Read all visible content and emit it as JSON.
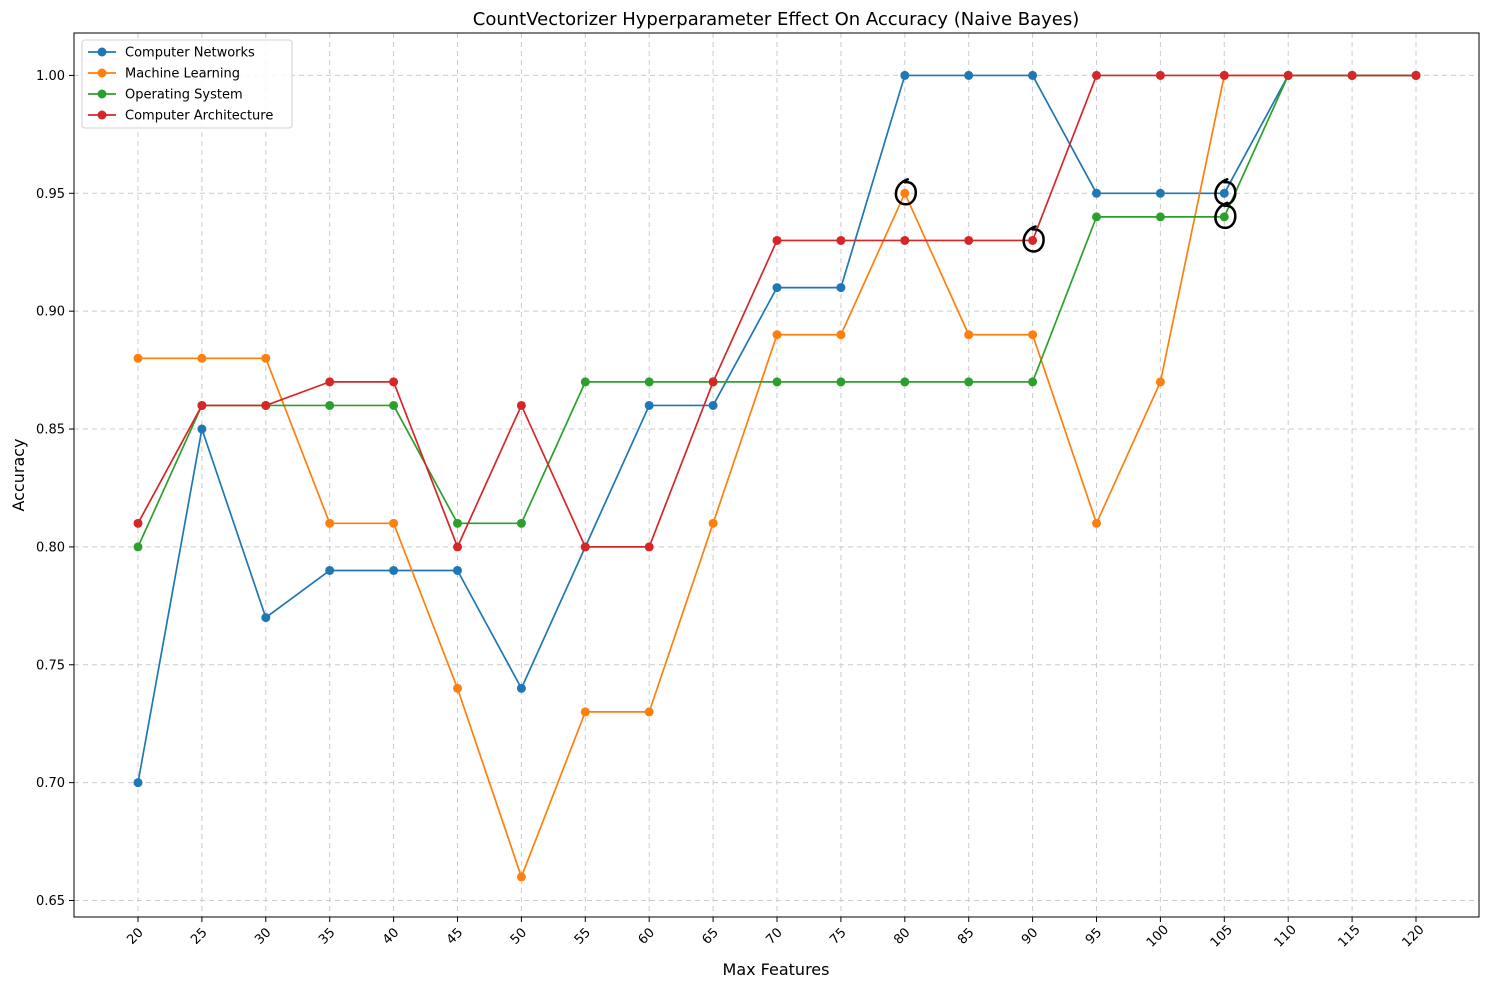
{
  "chart_data": {
    "type": "line",
    "title": "CountVectorizer Hyperparameter Effect On Accuracy (Naive Bayes)",
    "xlabel": "Max Features",
    "ylabel": "Accuracy",
    "x": [
      20,
      25,
      30,
      35,
      40,
      45,
      50,
      55,
      60,
      65,
      70,
      75,
      80,
      85,
      90,
      95,
      100,
      105,
      110,
      115,
      120
    ],
    "x_tick_labels": [
      "20",
      "25",
      "30",
      "35",
      "40",
      "45",
      "50",
      "55",
      "60",
      "65",
      "70",
      "75",
      "80",
      "85",
      "90",
      "95",
      "100",
      "105",
      "110",
      "115",
      "120"
    ],
    "y_tick_labels": [
      "0.65",
      "0.70",
      "0.75",
      "0.80",
      "0.85",
      "0.90",
      "0.95",
      "1.00"
    ],
    "y_ticks": [
      0.65,
      0.7,
      0.75,
      0.8,
      0.85,
      0.9,
      0.95,
      1.0
    ],
    "ylim": [
      0.643,
      1.018
    ],
    "grid": true,
    "legend_position": "top-left",
    "series": [
      {
        "name": "Computer Networks",
        "color": "#1f77b4",
        "values": [
          0.7,
          0.85,
          0.77,
          0.79,
          0.79,
          0.79,
          0.74,
          0.8,
          0.86,
          0.86,
          0.91,
          0.91,
          1.0,
          1.0,
          1.0,
          0.95,
          0.95,
          0.95,
          1.0,
          1.0,
          1.0
        ]
      },
      {
        "name": "Machine Learning",
        "color": "#ff7f0e",
        "values": [
          0.88,
          0.88,
          0.88,
          0.81,
          0.81,
          0.74,
          0.66,
          0.73,
          0.73,
          0.81,
          0.89,
          0.89,
          0.95,
          0.89,
          0.89,
          0.81,
          0.87,
          1.0,
          1.0,
          1.0,
          1.0
        ]
      },
      {
        "name": "Operating System",
        "color": "#2ca02c",
        "values": [
          0.8,
          0.86,
          0.86,
          0.86,
          0.86,
          0.81,
          0.81,
          0.87,
          0.87,
          0.87,
          0.87,
          0.87,
          0.87,
          0.87,
          0.87,
          0.94,
          0.94,
          0.94,
          1.0,
          1.0,
          1.0
        ]
      },
      {
        "name": "Computer Architecture",
        "color": "#d62728",
        "values": [
          0.81,
          0.86,
          0.86,
          0.87,
          0.87,
          0.8,
          0.86,
          0.8,
          0.8,
          0.87,
          0.93,
          0.93,
          0.93,
          0.93,
          0.93,
          1.0,
          1.0,
          1.0,
          1.0,
          1.0,
          1.0
        ]
      }
    ],
    "annotations": [
      {
        "type": "hand-drawn-circle",
        "x": 80,
        "y": 0.95
      },
      {
        "type": "hand-drawn-circle",
        "x": 90,
        "y": 0.93
      },
      {
        "type": "hand-drawn-circle",
        "x": 105,
        "y": 0.95
      },
      {
        "type": "hand-drawn-circle",
        "x": 105,
        "y": 0.94
      }
    ]
  }
}
